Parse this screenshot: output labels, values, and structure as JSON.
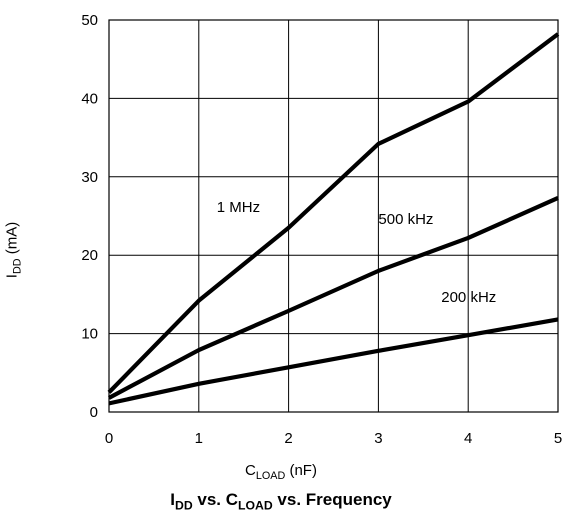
{
  "chart_data": {
    "type": "line",
    "title": {
      "main": "I",
      "main_sub": "DD",
      "rest1": " vs. C",
      "rest1_sub": "LOAD",
      "rest2": " vs. Frequency"
    },
    "xlabel": {
      "main": "C",
      "sub": "LOAD",
      "rest": " (nF)"
    },
    "ylabel": {
      "main": "I",
      "sub": "DD",
      "rest": " (mA)"
    },
    "xlim": [
      0,
      5
    ],
    "ylim": [
      0,
      50
    ],
    "xticks": [
      0,
      1,
      2,
      3,
      4,
      5
    ],
    "yticks": [
      0,
      10,
      20,
      30,
      40,
      50
    ],
    "grid": true,
    "series": [
      {
        "name": "1 MHz",
        "x": [
          0,
          1,
          2,
          3,
          4,
          5
        ],
        "y": [
          2.5,
          14.2,
          23.5,
          34.2,
          39.6,
          48.2
        ],
        "label_at": [
          1.2,
          25.5
        ]
      },
      {
        "name": "500 kHz",
        "x": [
          0,
          1,
          2,
          3,
          4,
          5
        ],
        "y": [
          1.8,
          7.9,
          12.9,
          18.0,
          22.2,
          27.3
        ],
        "label_at": [
          3.0,
          24.0
        ]
      },
      {
        "name": "200 kHz",
        "x": [
          0,
          1,
          2,
          3,
          4,
          5
        ],
        "y": [
          1.1,
          3.6,
          5.7,
          7.8,
          9.8,
          11.8
        ],
        "label_at": [
          3.7,
          14.0
        ]
      }
    ]
  }
}
